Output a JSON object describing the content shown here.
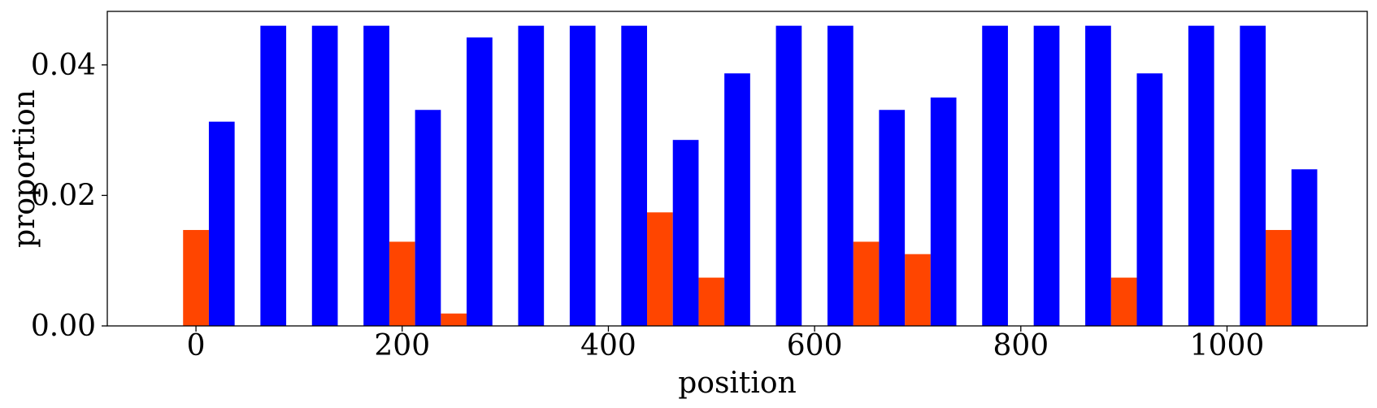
{
  "chart_data": {
    "type": "bar",
    "xlabel": "position",
    "ylabel": "proportion",
    "xlim": [
      -86,
      1136
    ],
    "ylim": [
      0,
      0.0482
    ],
    "xticks": [
      0,
      200,
      400,
      600,
      800,
      1000
    ],
    "yticks": [
      0.0,
      0.02,
      0.04
    ],
    "xtick_labels": [
      "0",
      "200",
      "400",
      "600",
      "800",
      "1000"
    ],
    "ytick_labels": [
      "0.00",
      "0.02",
      "0.04"
    ],
    "bar_width": 25,
    "grid": false,
    "legend": "none",
    "series": [
      {
        "color": "#ff4500",
        "x": [
          0,
          50,
          100,
          150,
          200,
          250,
          300,
          350,
          400,
          450,
          500,
          550,
          600,
          650,
          700,
          750,
          800,
          850,
          900,
          950,
          1000,
          1050
        ],
        "values": [
          0.0147,
          0,
          0,
          0,
          0.0129,
          0.0019,
          0,
          0,
          0,
          0.0174,
          0.0074,
          0,
          0,
          0.0129,
          0.011,
          0,
          0,
          0,
          0.0074,
          0,
          0,
          0.0147
        ]
      },
      {
        "color": "#0000ff",
        "x": [
          25,
          75,
          125,
          175,
          225,
          275,
          325,
          375,
          425,
          475,
          525,
          575,
          625,
          675,
          725,
          775,
          825,
          875,
          925,
          975,
          1025,
          1075
        ],
        "values": [
          0.0313,
          0.046,
          0.046,
          0.046,
          0.0331,
          0.0442,
          0.046,
          0.046,
          0.046,
          0.0285,
          0.0387,
          0.046,
          0.046,
          0.0331,
          0.035,
          0.046,
          0.046,
          0.046,
          0.0387,
          0.046,
          0.046,
          0.024
        ]
      }
    ]
  }
}
